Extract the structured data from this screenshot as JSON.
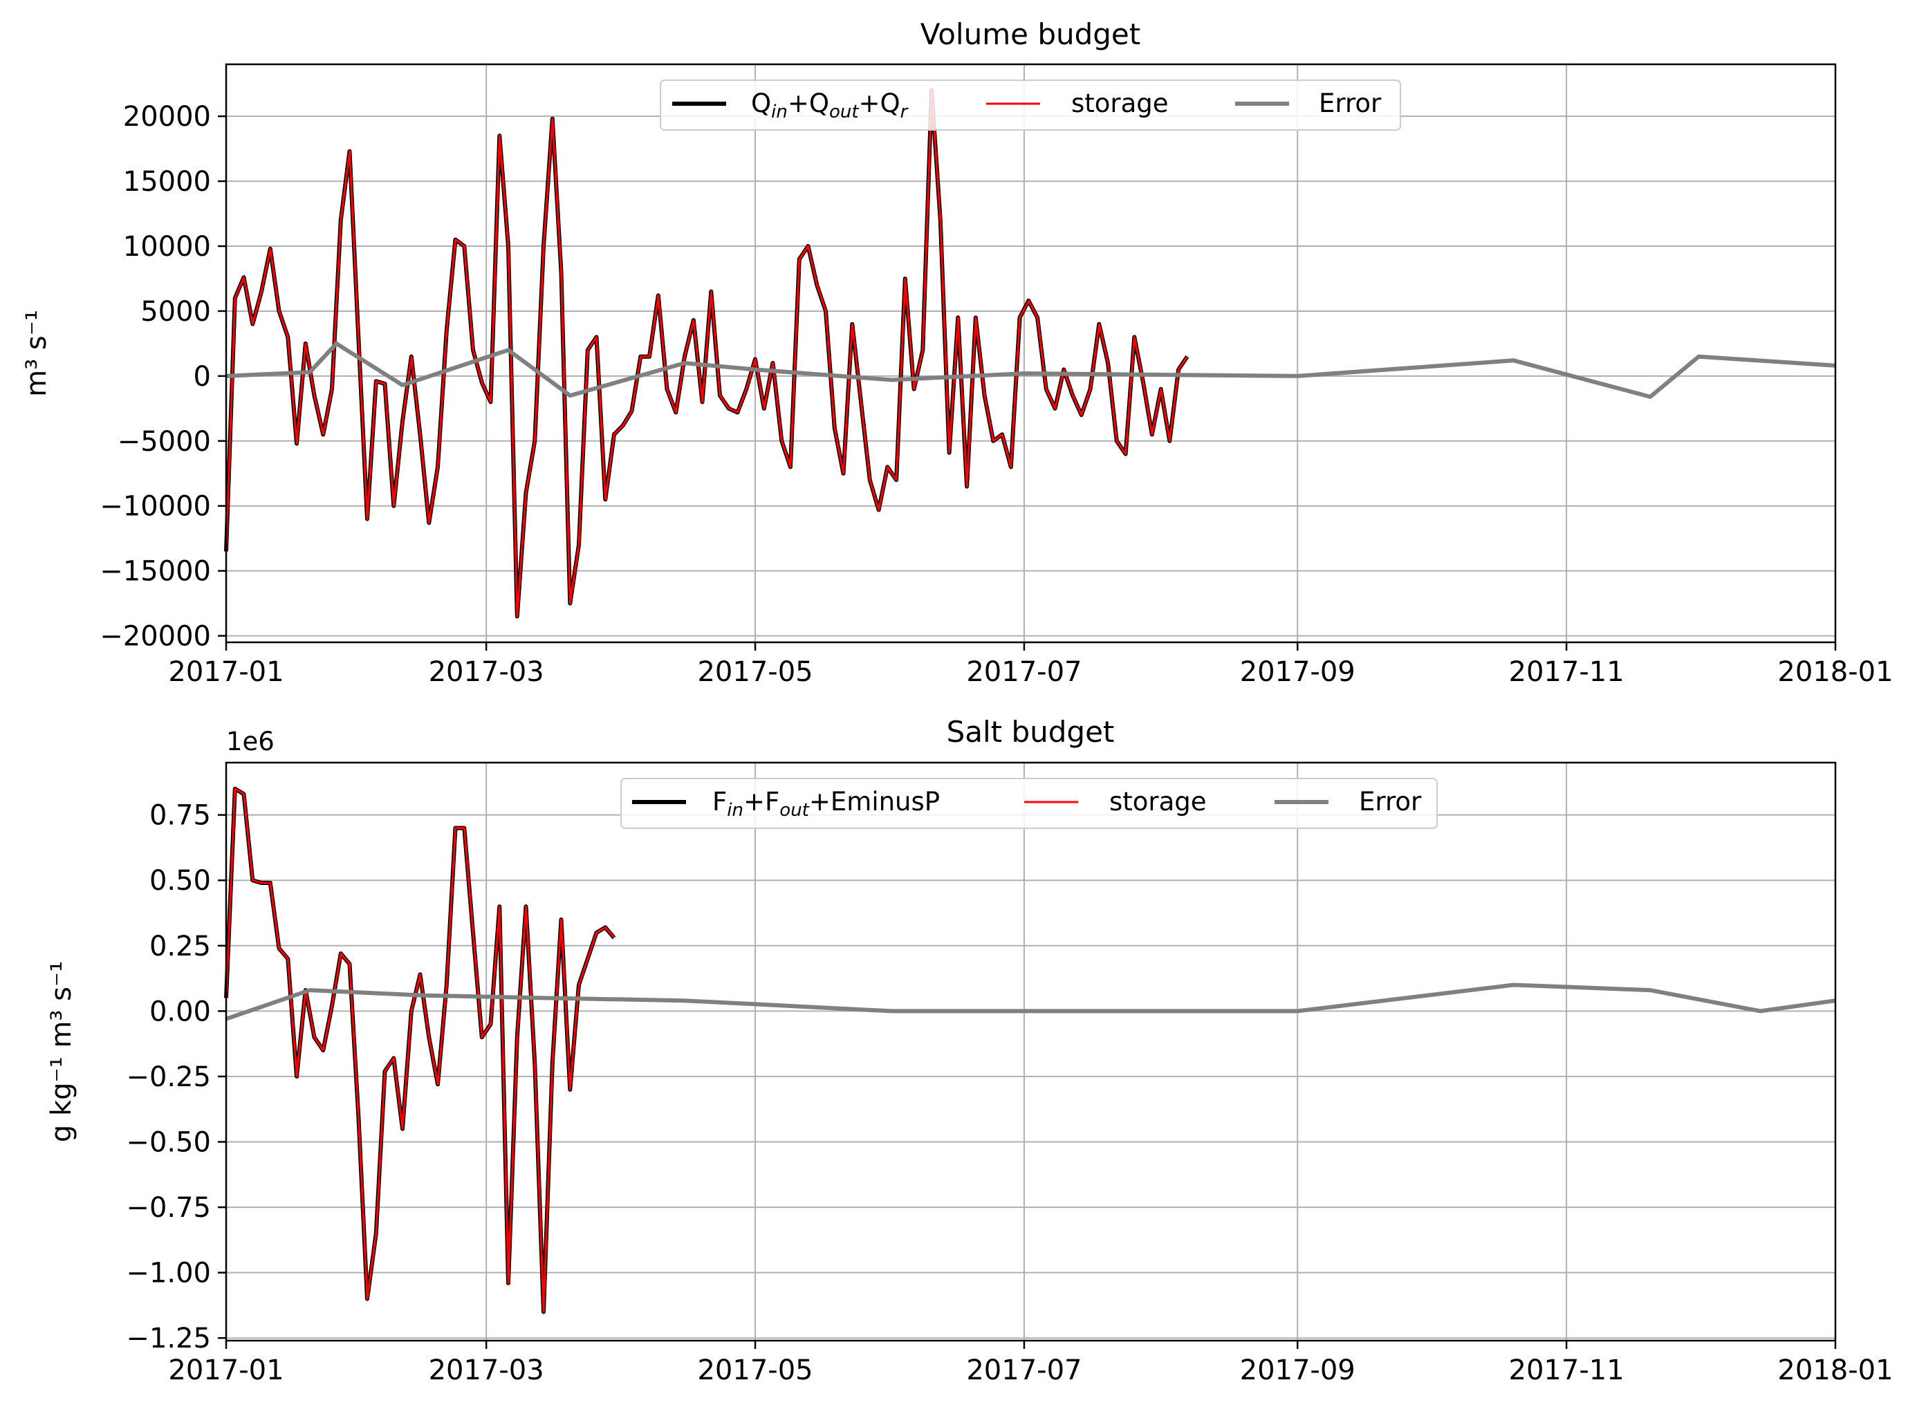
{
  "colors": {
    "combined": "#000000",
    "storage": "#ff0000",
    "error": "#808080",
    "grid": "#b0b0b0"
  },
  "panels": [
    {
      "title": "Volume budget",
      "ylabel": "m³ s⁻¹",
      "offset_label": "",
      "xtick_labels": [
        "2017-01",
        "2017-03",
        "2017-05",
        "2017-07",
        "2017-09",
        "2017-11",
        "2018-01"
      ],
      "ytick_labels": [
        "−20000",
        "−15000",
        "−10000",
        "−5000",
        "0",
        "5000",
        "10000",
        "15000",
        "20000"
      ],
      "legend": {
        "s1_a": "Q",
        "s1_a_sub": "in",
        "s1_b": "+Q",
        "s1_b_sub": "out",
        "s1_c": "+Q",
        "s1_c_sub": "r",
        "storage": "storage",
        "error": "Error"
      }
    },
    {
      "title": "Salt budget",
      "ylabel": "g kg⁻¹ m³ s⁻¹",
      "offset_label": "1e6",
      "xtick_labels": [
        "2017-01",
        "2017-03",
        "2017-05",
        "2017-07",
        "2017-09",
        "2017-11",
        "2018-01"
      ],
      "ytick_labels": [
        "−1.25",
        "−1.00",
        "−0.75",
        "−0.50",
        "−0.25",
        "0.00",
        "0.25",
        "0.50",
        "0.75"
      ],
      "legend": {
        "s1_a": "F",
        "s1_a_sub": "in",
        "s1_b": "+F",
        "s1_b_sub": "out",
        "s1_c": "+EminusP",
        "s1_c_sub": "",
        "storage": "storage",
        "error": "Error"
      }
    }
  ],
  "chart_data": [
    {
      "type": "line",
      "title": "Volume budget",
      "xlabel": "",
      "ylabel": "m3 s-1",
      "xlim": [
        "2017-01-01",
        "2018-01-01"
      ],
      "ylim": [
        -20500,
        24000
      ],
      "yticks": [
        -20000,
        -15000,
        -10000,
        -5000,
        0,
        5000,
        10000,
        15000,
        20000
      ],
      "xticks": [
        "2017-01-01",
        "2017-03-01",
        "2017-05-01",
        "2017-07-01",
        "2017-09-01",
        "2017-11-01",
        "2018-01-01"
      ],
      "grid": true,
      "legend_position": "top-center",
      "series": [
        {
          "name": "Q_in+Q_out+Q_r",
          "color": "#000000",
          "points": [
            [
              "2017-01-01",
              -13500
            ],
            [
              "2017-01-03",
              6000
            ],
            [
              "2017-01-05",
              7600
            ],
            [
              "2017-01-07",
              4000
            ],
            [
              "2017-01-09",
              6500
            ],
            [
              "2017-01-11",
              9800
            ],
            [
              "2017-01-13",
              5000
            ],
            [
              "2017-01-15",
              3000
            ],
            [
              "2017-01-17",
              -5200
            ],
            [
              "2017-01-19",
              2500
            ],
            [
              "2017-01-21",
              -1500
            ],
            [
              "2017-01-23",
              -4500
            ],
            [
              "2017-01-25",
              -1000
            ],
            [
              "2017-01-27",
              12000
            ],
            [
              "2017-01-29",
              17300
            ],
            [
              "2017-01-31",
              3000
            ],
            [
              "2017-02-02",
              -11000
            ],
            [
              "2017-02-04",
              -400
            ],
            [
              "2017-02-06",
              -600
            ],
            [
              "2017-02-08",
              -10000
            ],
            [
              "2017-02-10",
              -3500
            ],
            [
              "2017-02-12",
              1500
            ],
            [
              "2017-02-14",
              -4500
            ],
            [
              "2017-02-16",
              -11300
            ],
            [
              "2017-02-18",
              -7000
            ],
            [
              "2017-02-20",
              3500
            ],
            [
              "2017-02-22",
              10500
            ],
            [
              "2017-02-24",
              10000
            ],
            [
              "2017-02-26",
              2000
            ],
            [
              "2017-02-28",
              -500
            ],
            [
              "2017-03-02",
              -2000
            ],
            [
              "2017-03-04",
              18500
            ],
            [
              "2017-03-06",
              10000
            ],
            [
              "2017-03-08",
              -18500
            ],
            [
              "2017-03-10",
              -9000
            ],
            [
              "2017-03-12",
              -5000
            ],
            [
              "2017-03-14",
              10000
            ],
            [
              "2017-03-16",
              19800
            ],
            [
              "2017-03-18",
              8000
            ],
            [
              "2017-03-20",
              -17500
            ],
            [
              "2017-03-22",
              -13000
            ],
            [
              "2017-03-24",
              2000
            ],
            [
              "2017-03-26",
              3000
            ],
            [
              "2017-03-28",
              -9500
            ],
            [
              "2017-03-30",
              -4500
            ],
            [
              "2017-04-01",
              -3800
            ],
            [
              "2017-04-03",
              -2700
            ],
            [
              "2017-04-05",
              1500
            ],
            [
              "2017-04-07",
              1500
            ],
            [
              "2017-04-09",
              6200
            ],
            [
              "2017-04-11",
              -1000
            ],
            [
              "2017-04-13",
              -2800
            ],
            [
              "2017-04-15",
              1500
            ],
            [
              "2017-04-17",
              4300
            ],
            [
              "2017-04-19",
              -2000
            ],
            [
              "2017-04-21",
              6500
            ],
            [
              "2017-04-23",
              -1500
            ],
            [
              "2017-04-25",
              -2500
            ],
            [
              "2017-04-27",
              -2800
            ],
            [
              "2017-04-29",
              -1000
            ],
            [
              "2017-05-01",
              1300
            ],
            [
              "2017-05-03",
              -2500
            ],
            [
              "2017-05-05",
              1000
            ],
            [
              "2017-05-07",
              -5000
            ],
            [
              "2017-05-09",
              -7000
            ],
            [
              "2017-05-11",
              9000
            ],
            [
              "2017-05-13",
              10000
            ],
            [
              "2017-05-15",
              7000
            ],
            [
              "2017-05-17",
              5000
            ],
            [
              "2017-05-19",
              -4000
            ],
            [
              "2017-05-21",
              -7500
            ],
            [
              "2017-05-23",
              4000
            ],
            [
              "2017-05-25",
              -2000
            ],
            [
              "2017-05-27",
              -8000
            ],
            [
              "2017-05-29",
              -10300
            ],
            [
              "2017-05-31",
              -7000
            ],
            [
              "2017-06-02",
              -8000
            ],
            [
              "2017-06-04",
              7500
            ],
            [
              "2017-06-06",
              -1000
            ],
            [
              "2017-06-08",
              2000
            ],
            [
              "2017-06-10",
              22000
            ],
            [
              "2017-06-12",
              12000
            ],
            [
              "2017-06-14",
              -5900
            ],
            [
              "2017-06-16",
              4500
            ],
            [
              "2017-06-18",
              -8500
            ],
            [
              "2017-06-20",
              4500
            ],
            [
              "2017-06-22",
              -1500
            ],
            [
              "2017-06-24",
              -5000
            ],
            [
              "2017-06-26",
              -4500
            ],
            [
              "2017-06-28",
              -7000
            ],
            [
              "2017-06-30",
              4500
            ],
            [
              "2017-07-02",
              5800
            ],
            [
              "2017-07-04",
              4500
            ],
            [
              "2017-07-06",
              -1000
            ],
            [
              "2017-07-08",
              -2500
            ],
            [
              "2017-07-10",
              500
            ],
            [
              "2017-07-12",
              -1500
            ],
            [
              "2017-07-14",
              -3000
            ],
            [
              "2017-07-16",
              -1000
            ],
            [
              "2017-07-18",
              4000
            ],
            [
              "2017-07-20",
              1000
            ],
            [
              "2017-07-22",
              -5000
            ],
            [
              "2017-07-24",
              -6000
            ],
            [
              "2017-07-26",
              3000
            ],
            [
              "2017-07-28",
              -500
            ],
            [
              "2017-07-30",
              -4500
            ],
            [
              "2017-08-01",
              -1000
            ],
            [
              "2017-08-03",
              -5000
            ],
            [
              "2017-08-05",
              500
            ],
            [
              "2017-08-07",
              1500
            ]
          ]
        },
        {
          "name": "storage",
          "color": "#ff0000",
          "points": "same as Q_in+Q_out+Q_r with small deviations"
        },
        {
          "name": "Error",
          "color": "#808080",
          "points": [
            [
              "2017-01-01",
              0
            ],
            [
              "2017-01-20",
              300
            ],
            [
              "2017-01-26",
              2500
            ],
            [
              "2017-02-10",
              -700
            ],
            [
              "2017-03-06",
              2000
            ],
            [
              "2017-03-20",
              -1500
            ],
            [
              "2017-04-15",
              1000
            ],
            [
              "2017-05-01",
              500
            ],
            [
              "2017-06-01",
              -300
            ],
            [
              "2017-07-01",
              200
            ],
            [
              "2017-09-01",
              0
            ],
            [
              "2017-10-20",
              1200
            ],
            [
              "2017-11-20",
              -1600
            ],
            [
              "2017-12-01",
              1500
            ],
            [
              "2018-01-01",
              800
            ]
          ]
        }
      ]
    },
    {
      "type": "line",
      "title": "Salt budget",
      "xlabel": "",
      "ylabel": "g kg-1 m3 s-1",
      "y_scale_note": "1e6",
      "xlim": [
        "2017-01-01",
        "2018-01-01"
      ],
      "ylim": [
        -1.26,
        0.95
      ],
      "yticks": [
        -1.25,
        -1.0,
        -0.75,
        -0.5,
        -0.25,
        0.0,
        0.25,
        0.5,
        0.75
      ],
      "xticks": [
        "2017-01-01",
        "2017-03-01",
        "2017-05-01",
        "2017-07-01",
        "2017-09-01",
        "2017-11-01",
        "2018-01-01"
      ],
      "grid": true,
      "legend_position": "top-center",
      "series": [
        {
          "name": "F_in+F_out+EminusP",
          "color": "#000000",
          "points": [
            [
              "2017-01-01",
              0.05
            ],
            [
              "2017-01-03",
              0.85
            ],
            [
              "2017-01-05",
              0.83
            ],
            [
              "2017-01-07",
              0.5
            ],
            [
              "2017-01-09",
              0.49
            ],
            [
              "2017-01-11",
              0.49
            ],
            [
              "2017-01-13",
              0.24
            ],
            [
              "2017-01-15",
              0.2
            ],
            [
              "2017-01-17",
              -0.25
            ],
            [
              "2017-01-19",
              0.08
            ],
            [
              "2017-01-21",
              -0.1
            ],
            [
              "2017-01-23",
              -0.15
            ],
            [
              "2017-01-25",
              0.02
            ],
            [
              "2017-01-27",
              0.22
            ],
            [
              "2017-01-29",
              0.18
            ],
            [
              "2017-01-31",
              -0.4
            ],
            [
              "2017-02-02",
              -1.1
            ],
            [
              "2017-02-04",
              -0.85
            ],
            [
              "2017-02-06",
              -0.23
            ],
            [
              "2017-02-08",
              -0.18
            ],
            [
              "2017-02-10",
              -0.45
            ],
            [
              "2017-02-12",
              0.0
            ],
            [
              "2017-02-14",
              0.14
            ],
            [
              "2017-02-16",
              -0.1
            ],
            [
              "2017-02-18",
              -0.28
            ],
            [
              "2017-02-20",
              0.1
            ],
            [
              "2017-02-22",
              0.7
            ],
            [
              "2017-02-24",
              0.7
            ],
            [
              "2017-02-26",
              0.3
            ],
            [
              "2017-02-28",
              -0.1
            ],
            [
              "2017-03-02",
              -0.05
            ],
            [
              "2017-03-04",
              0.4
            ],
            [
              "2017-03-06",
              -1.04
            ],
            [
              "2017-03-08",
              -0.1
            ],
            [
              "2017-03-10",
              0.4
            ],
            [
              "2017-03-12",
              -0.2
            ],
            [
              "2017-03-14",
              -1.15
            ],
            [
              "2017-03-16",
              -0.2
            ],
            [
              "2017-03-18",
              0.35
            ],
            [
              "2017-03-20",
              -0.3
            ],
            [
              "2017-03-22",
              0.1
            ],
            [
              "2017-03-24",
              0.2
            ],
            [
              "2017-03-26",
              0.3
            ],
            [
              "2017-03-28",
              0.32
            ],
            [
              "2017-03-30",
              0.28
            ]
          ]
        },
        {
          "name": "storage",
          "color": "#ff0000",
          "points": "same as F_in+F_out+EminusP with small deviations"
        },
        {
          "name": "Error",
          "color": "#808080",
          "points": [
            [
              "2017-01-01",
              -0.03
            ],
            [
              "2017-01-20",
              0.08
            ],
            [
              "2017-02-15",
              0.06
            ],
            [
              "2017-03-15",
              0.05
            ],
            [
              "2017-04-15",
              0.04
            ],
            [
              "2017-06-01",
              0.0
            ],
            [
              "2017-09-01",
              0.0
            ],
            [
              "2017-10-20",
              0.1
            ],
            [
              "2017-11-20",
              0.08
            ],
            [
              "2017-12-15",
              0.0
            ],
            [
              "2018-01-01",
              0.04
            ]
          ]
        }
      ]
    }
  ]
}
